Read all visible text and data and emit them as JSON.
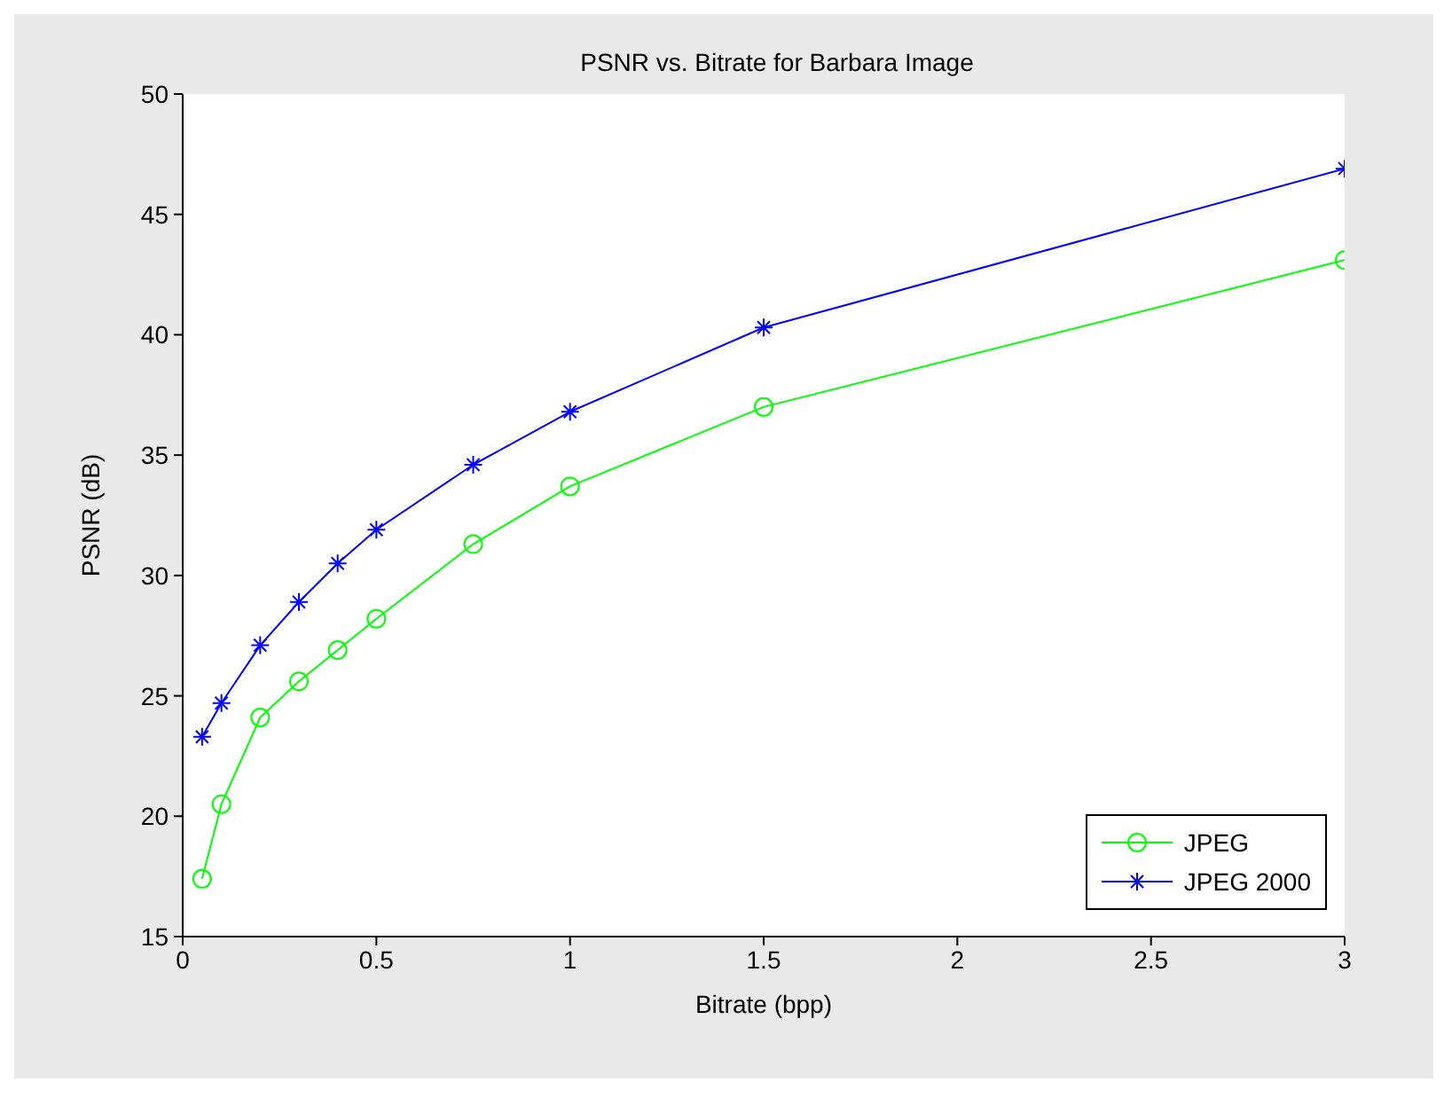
{
  "chart_data": {
    "type": "line",
    "title": "PSNR vs. Bitrate for Barbara Image",
    "xlabel": "Bitrate (bpp)",
    "ylabel": "PSNR (dB)",
    "xlim": [
      0,
      3
    ],
    "xticks": [
      0,
      0.5,
      1,
      1.5,
      2,
      2.5,
      3
    ],
    "ylim": [
      15,
      50
    ],
    "yticks": [
      15,
      20,
      25,
      30,
      35,
      40,
      45,
      50
    ],
    "grid": false,
    "legend": "bottom right",
    "line_style": "solid",
    "series": [
      {
        "name": "JPEG",
        "color": "#00ff00",
        "marker": "circle",
        "x": [
          0.05,
          0.1,
          0.2,
          0.3,
          0.4,
          0.5,
          0.75,
          1,
          1.5,
          3
        ],
        "values": [
          17.4,
          20.5,
          24.1,
          25.6,
          26.9,
          28.2,
          31.3,
          33.7,
          37.0,
          43.1
        ]
      },
      {
        "name": "JPEG 2000",
        "color": "#0000ff",
        "marker": "cross",
        "x": [
          0.05,
          0.1,
          0.2,
          0.3,
          0.4,
          0.5,
          0.75,
          1,
          1.5,
          3
        ],
        "values": [
          23.3,
          24.7,
          27.1,
          28.9,
          30.5,
          31.9,
          34.6,
          36.8,
          40.3,
          46.9
        ]
      }
    ]
  }
}
